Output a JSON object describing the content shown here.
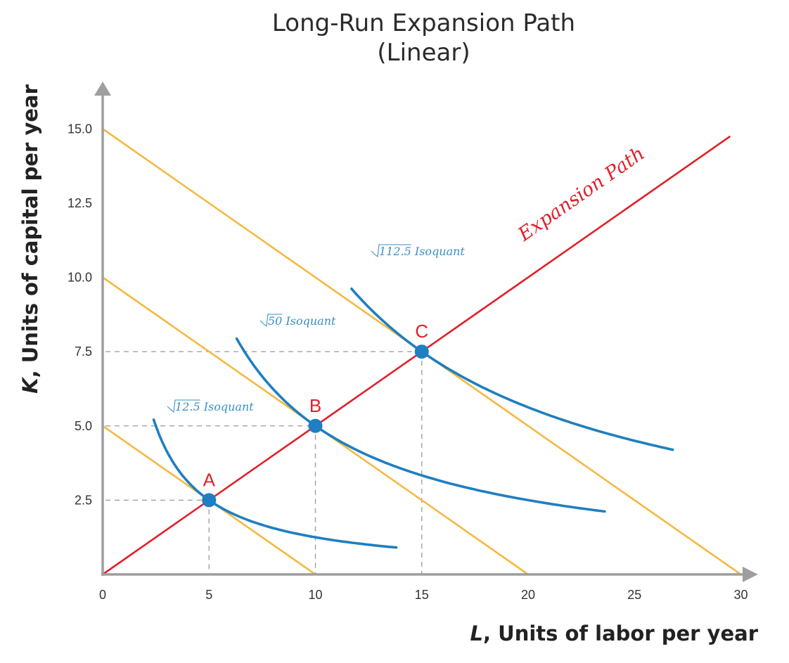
{
  "chart_data": {
    "type": "line",
    "title": [
      "Long-Run Expansion Path",
      "(Linear)"
    ],
    "xlabel": {
      "var": "L",
      "text": ", Units of labor per year"
    },
    "ylabel": {
      "var": "K",
      "text": ", Units of capital per year"
    },
    "xlim": [
      0,
      30
    ],
    "ylim": [
      0,
      15.8
    ],
    "x_ticks": [
      "0",
      "5",
      "10",
      "15",
      "20",
      "25",
      "30"
    ],
    "y_ticks": [
      "2.5",
      "5.0",
      "7.5",
      "10.0",
      "12.5",
      "15.0"
    ],
    "grid": false,
    "colors": {
      "axis": "#9e9e9e",
      "isocost": "#f5b942",
      "isoquant": "#1f7fc0",
      "expansion": "#e0202a",
      "guides": "#999999"
    },
    "isocost_lines": [
      {
        "intercept_K": 5,
        "intercept_L": 10
      },
      {
        "intercept_K": 10,
        "intercept_L": 20
      },
      {
        "intercept_K": 15,
        "intercept_L": 30
      }
    ],
    "isoquants": [
      {
        "label_root": "12.5",
        "label_text": "Isoquant",
        "q": 12.5,
        "L_range": [
          2.4,
          13.8
        ]
      },
      {
        "label_root": "50",
        "label_text": "Isoquant",
        "q": 50,
        "L_range": [
          6.3,
          23.6
        ]
      },
      {
        "label_root": "112.5",
        "label_text": "Isoquant",
        "q": 112.5,
        "L_range": [
          11.7,
          26.8
        ]
      }
    ],
    "expansion_path": {
      "label": "Expansion Path",
      "from": [
        0,
        0
      ],
      "to": [
        29.5,
        14.75
      ]
    },
    "points": [
      {
        "label": "A",
        "L": 5,
        "K": 2.5
      },
      {
        "label": "B",
        "L": 10,
        "K": 5
      },
      {
        "label": "C",
        "L": 15,
        "K": 7.5
      }
    ]
  }
}
